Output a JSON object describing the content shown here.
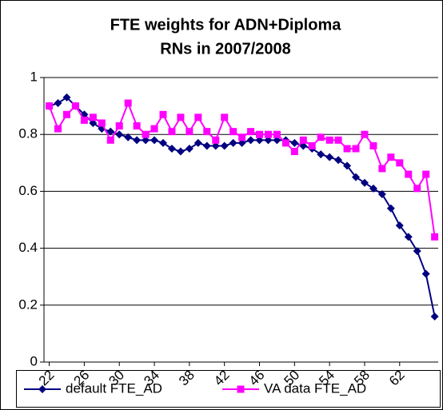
{
  "chart_data": {
    "type": "line",
    "title": [
      "FTE weights for ADN+Diploma",
      "RNs in 2007/2008"
    ],
    "x": [
      22,
      23,
      24,
      25,
      26,
      27,
      28,
      29,
      30,
      31,
      32,
      33,
      34,
      35,
      36,
      37,
      38,
      39,
      40,
      41,
      42,
      43,
      44,
      45,
      46,
      47,
      48,
      49,
      50,
      51,
      52,
      53,
      54,
      55,
      56,
      57,
      58,
      59,
      60,
      61,
      62,
      63,
      64,
      65,
      66
    ],
    "series": [
      {
        "name": "default FTE_AD",
        "color": "#000080",
        "marker": "diamond",
        "values": [
          0.9,
          0.91,
          0.93,
          0.9,
          0.87,
          0.84,
          0.82,
          0.81,
          0.8,
          0.79,
          0.78,
          0.78,
          0.78,
          0.77,
          0.75,
          0.74,
          0.75,
          0.77,
          0.76,
          0.76,
          0.76,
          0.77,
          0.77,
          0.78,
          0.78,
          0.78,
          0.78,
          0.78,
          0.77,
          0.76,
          0.75,
          0.73,
          0.72,
          0.71,
          0.69,
          0.65,
          0.63,
          0.61,
          0.59,
          0.54,
          0.48,
          0.44,
          0.39,
          0.31,
          0.16
        ]
      },
      {
        "name": "VA data FTE_AD",
        "color": "#ff00ff",
        "marker": "square",
        "values": [
          0.9,
          0.82,
          0.87,
          0.9,
          0.85,
          0.86,
          0.84,
          0.78,
          0.83,
          0.91,
          0.83,
          0.8,
          0.82,
          0.87,
          0.81,
          0.86,
          0.81,
          0.86,
          0.81,
          0.78,
          0.86,
          0.81,
          0.79,
          0.81,
          0.8,
          0.8,
          0.8,
          0.77,
          0.74,
          0.78,
          0.76,
          0.79,
          0.78,
          0.78,
          0.75,
          0.75,
          0.8,
          0.76,
          0.68,
          0.72,
          0.7,
          0.66,
          0.61,
          0.66,
          0.44
        ]
      }
    ],
    "xlim": [
      21.4,
      66.4
    ],
    "xticks": [
      22,
      26,
      30,
      34,
      38,
      42,
      46,
      50,
      54,
      58,
      62
    ],
    "ylim": [
      0,
      1
    ],
    "yticks": [
      0,
      0.2,
      0.4,
      0.6,
      0.8,
      1
    ],
    "grid": true,
    "legend": "bottom"
  }
}
